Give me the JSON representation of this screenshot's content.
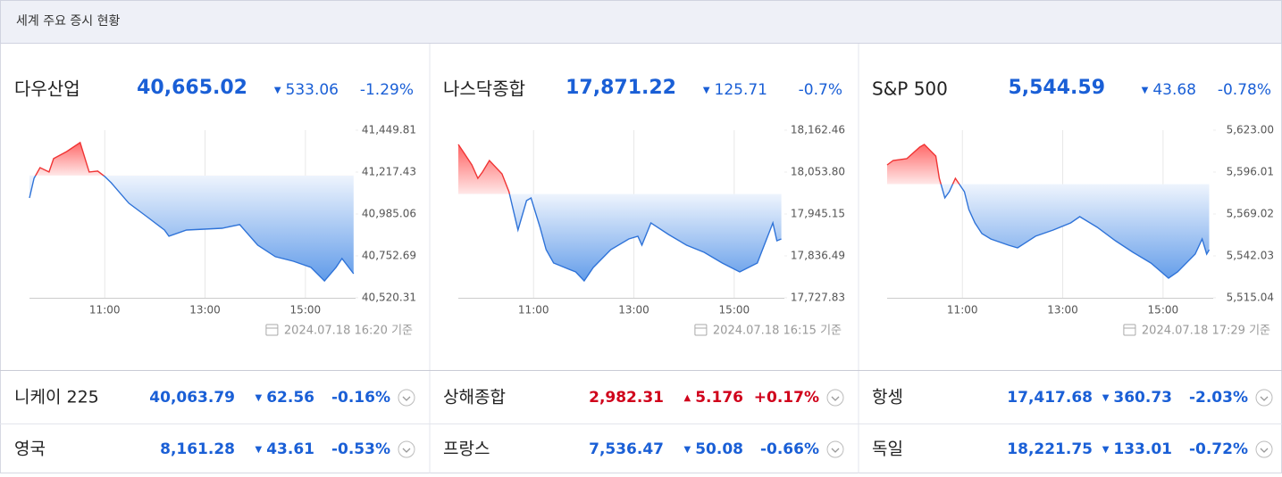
{
  "header": {
    "title": "세계 주요 증시 현황"
  },
  "panels": [
    {
      "name": "다우산업",
      "price": "40,665.02",
      "change": "533.06",
      "percent": "-1.29%",
      "direction": "down",
      "timestamp": "2024.07.18 16:20 기준"
    },
    {
      "name": "나스닥종합",
      "price": "17,871.22",
      "change": "125.71",
      "percent": "-0.7%",
      "direction": "down",
      "timestamp": "2024.07.18 16:15 기준"
    },
    {
      "name": "S&P 500",
      "price": "5,544.59",
      "change": "43.68",
      "percent": "-0.78%",
      "direction": "down",
      "timestamp": "2024.07.18 17:29 기준"
    }
  ],
  "rows": [
    [
      {
        "name": "니케이 225",
        "price": "40,063.79",
        "change": "62.56",
        "percent": "-0.16%",
        "direction": "down"
      },
      {
        "name": "상해종합",
        "price": "2,982.31",
        "change": "5.176",
        "percent": "+0.17%",
        "direction": "up"
      },
      {
        "name": "항셍",
        "price": "17,417.68",
        "change": "360.73",
        "percent": "-2.03%",
        "direction": "down"
      }
    ],
    [
      {
        "name": "영국",
        "price": "8,161.28",
        "change": "43.61",
        "percent": "-0.53%",
        "direction": "down"
      },
      {
        "name": "프랑스",
        "price": "7,536.47",
        "change": "50.08",
        "percent": "-0.66%",
        "direction": "down"
      },
      {
        "name": "독일",
        "price": "18,221.75",
        "change": "133.01",
        "percent": "-0.72%",
        "direction": "down"
      }
    ]
  ],
  "chart_data": [
    {
      "type": "line",
      "xlim": [
        9.5,
        16
      ],
      "ylim": [
        40520.31,
        41449.81
      ],
      "xticks": [
        {
          "value": 11,
          "label": "11:00"
        },
        {
          "value": 13,
          "label": "13:00"
        },
        {
          "value": 15,
          "label": "15:00"
        }
      ],
      "yticks": [
        {
          "value": 41449.81,
          "label": "41,449.81"
        },
        {
          "value": 41217.43,
          "label": "41,217.43"
        },
        {
          "value": 40985.06,
          "label": "40,985.06"
        },
        {
          "value": 40752.69,
          "label": "40,752.69"
        },
        {
          "value": 40520.31,
          "label": "40,520.31"
        }
      ],
      "x": [
        9.5,
        9.59,
        9.71,
        9.89,
        9.98,
        10.24,
        10.51,
        10.69,
        10.86,
        11.0,
        11.13,
        11.48,
        11.84,
        12.19,
        12.28,
        12.63,
        12.99,
        13.34,
        13.69,
        14.05,
        14.4,
        14.76,
        15.11,
        15.38,
        15.61,
        15.73,
        15.96
      ],
      "values": [
        41074,
        41183,
        41242,
        41218,
        41292,
        41331,
        41381,
        41218,
        41223,
        41193,
        41158,
        41045,
        40970,
        40896,
        40862,
        40896,
        40901,
        40906,
        40926,
        40812,
        40748,
        40723,
        40689,
        40614,
        40689,
        40738,
        40654
      ]
    },
    {
      "type": "line",
      "xlim": [
        9.5,
        16
      ],
      "ylim": [
        17727.83,
        18162.46
      ],
      "xticks": [
        {
          "value": 11,
          "label": "11:00"
        },
        {
          "value": 13,
          "label": "13:00"
        },
        {
          "value": 15,
          "label": "15:00"
        }
      ],
      "yticks": [
        {
          "value": 18162.46,
          "label": "18,162.46"
        },
        {
          "value": 18053.8,
          "label": "18,053.80"
        },
        {
          "value": 17945.15,
          "label": "17,945.15"
        },
        {
          "value": 17836.49,
          "label": "17,836.49"
        },
        {
          "value": 17727.83,
          "label": "17,727.83"
        }
      ],
      "x": [
        9.5,
        9.62,
        9.77,
        9.89,
        9.98,
        10.12,
        10.37,
        10.51,
        10.69,
        10.86,
        10.95,
        11.13,
        11.25,
        11.4,
        11.84,
        12.01,
        12.19,
        12.54,
        12.9,
        13.08,
        13.16,
        13.34,
        13.69,
        14.05,
        14.4,
        14.76,
        15.11,
        15.46,
        15.77,
        15.85,
        15.94
      ],
      "values": [
        18125.5,
        18102.3,
        18072.3,
        18037.6,
        18053.8,
        18083.9,
        18049.2,
        18002.9,
        17903.5,
        17979.8,
        17986.8,
        17910.5,
        17852.7,
        17818,
        17794.9,
        17771.7,
        17806.4,
        17852.7,
        17880.4,
        17887.3,
        17864.2,
        17922,
        17892,
        17864.2,
        17845.7,
        17818,
        17794.9,
        17818,
        17922,
        17875.8,
        17880.4
      ]
    },
    {
      "type": "line",
      "xlim": [
        9.5,
        16
      ],
      "ylim": [
        5515.04,
        5623
      ],
      "xticks": [
        {
          "value": 11,
          "label": "11:00"
        },
        {
          "value": 13,
          "label": "13:00"
        },
        {
          "value": 15,
          "label": "15:00"
        }
      ],
      "yticks": [
        {
          "value": 5623,
          "label": "5,623.00"
        },
        {
          "value": 5596.01,
          "label": "5,596.01"
        },
        {
          "value": 5569.02,
          "label": "5,569.02"
        },
        {
          "value": 5542.03,
          "label": "5,542.03"
        },
        {
          "value": 5515.04,
          "label": "5,515.04"
        }
      ],
      "x": [
        9.5,
        9.62,
        9.89,
        10.15,
        10.24,
        10.47,
        10.54,
        10.65,
        10.74,
        10.86,
        11.04,
        11.13,
        11.25,
        11.39,
        11.57,
        11.92,
        12.1,
        12.46,
        12.81,
        13.16,
        13.34,
        13.69,
        14.05,
        14.4,
        14.76,
        15.11,
        15.29,
        15.64,
        15.78,
        15.87,
        15.92
      ],
      "values": [
        5600.6,
        5603.5,
        5604.6,
        5612.1,
        5613.8,
        5606.3,
        5592.0,
        5579.4,
        5583.4,
        5592.0,
        5583.4,
        5571.9,
        5563.3,
        5556.4,
        5552.9,
        5548.9,
        5547.2,
        5554.7,
        5558.7,
        5563.3,
        5567.3,
        5560.4,
        5551.8,
        5544.3,
        5537.4,
        5527.7,
        5531.7,
        5543.2,
        5552.9,
        5543.2,
        5546.0
      ]
    }
  ]
}
